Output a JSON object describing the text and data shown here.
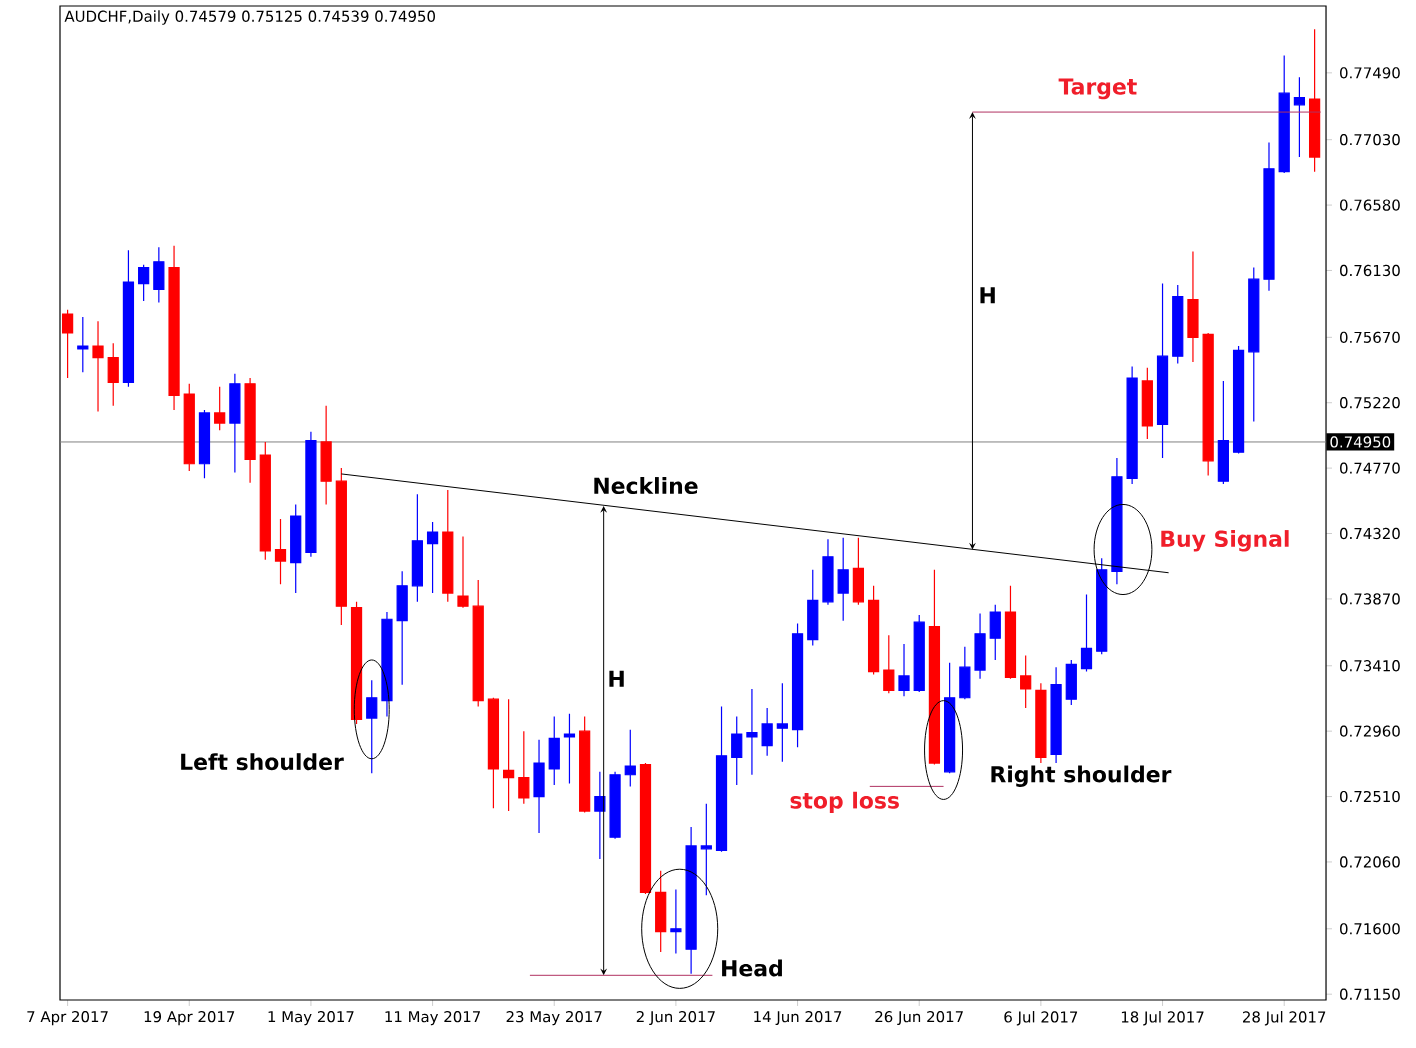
{
  "chart_data": {
    "type": "candlestick",
    "title": "AUDCHF,Daily  0.74579 0.75125 0.74539 0.74950",
    "categories": [
      "7 Apr 2017",
      null,
      null,
      null,
      null,
      null,
      null,
      null,
      "19 Apr 2017",
      null,
      null,
      null,
      null,
      null,
      null,
      null,
      "1 May 2017",
      null,
      null,
      null,
      null,
      null,
      null,
      null,
      "11 May 2017",
      null,
      null,
      null,
      null,
      null,
      null,
      null,
      "23 May 2017",
      null,
      null,
      null,
      null,
      null,
      null,
      null,
      "2 Jun 2017",
      null,
      null,
      null,
      null,
      null,
      null,
      null,
      "14 Jun 2017",
      null,
      null,
      null,
      null,
      null,
      null,
      null,
      "26 Jun 2017",
      null,
      null,
      null,
      null,
      null,
      null,
      null,
      "6 Jul 2017",
      null,
      null,
      null,
      null,
      null,
      null,
      null,
      "18 Jul 2017",
      null,
      null,
      null,
      null,
      null,
      null,
      null,
      "28 Jul 2017",
      null,
      null
    ],
    "ohlc": [
      [
        0.7583,
        0.7586,
        0.7539,
        0.757
      ],
      [
        0.7559,
        0.7581,
        0.7543,
        0.7561
      ],
      [
        0.7561,
        0.7578,
        0.7516,
        0.7553
      ],
      [
        0.7553,
        0.7563,
        0.752,
        0.7536
      ],
      [
        0.7536,
        0.7627,
        0.7533,
        0.7605
      ],
      [
        0.7604,
        0.7617,
        0.7592,
        0.7615
      ],
      [
        0.76,
        0.7629,
        0.7591,
        0.7619
      ],
      [
        0.7615,
        0.763,
        0.7517,
        0.7527
      ],
      [
        0.7528,
        0.7535,
        0.7475,
        0.748
      ],
      [
        0.748,
        0.7517,
        0.747,
        0.7515
      ],
      [
        0.7515,
        0.7533,
        0.7503,
        0.7508
      ],
      [
        0.7508,
        0.7542,
        0.7474,
        0.7535
      ],
      [
        0.7535,
        0.7539,
        0.7467,
        0.7483
      ],
      [
        0.7486,
        0.7495,
        0.7414,
        0.742
      ],
      [
        0.7421,
        0.7442,
        0.7397,
        0.7413
      ],
      [
        0.7412,
        0.7452,
        0.7391,
        0.7444
      ],
      [
        0.7419,
        0.7502,
        0.7416,
        0.7496
      ],
      [
        0.7495,
        0.752,
        0.7452,
        0.7468
      ],
      [
        0.7468,
        0.7477,
        0.7369,
        0.7382
      ],
      [
        0.7381,
        0.7385,
        0.7301,
        0.7304
      ],
      [
        0.7305,
        0.7331,
        0.7267,
        0.7319
      ],
      [
        0.7317,
        0.7378,
        0.7306,
        0.7373
      ],
      [
        0.7372,
        0.7406,
        0.7328,
        0.7396
      ],
      [
        0.7396,
        0.7459,
        0.7385,
        0.7427
      ],
      [
        0.7425,
        0.744,
        0.7391,
        0.7433
      ],
      [
        0.7433,
        0.7462,
        0.7385,
        0.7391
      ],
      [
        0.7389,
        0.743,
        0.7381,
        0.7382
      ],
      [
        0.7382,
        0.74,
        0.7313,
        0.7317
      ],
      [
        0.7318,
        0.7319,
        0.7243,
        0.727
      ],
      [
        0.7269,
        0.7318,
        0.7241,
        0.7264
      ],
      [
        0.7264,
        0.7296,
        0.7246,
        0.725
      ],
      [
        0.7251,
        0.729,
        0.7226,
        0.7274
      ],
      [
        0.727,
        0.7306,
        0.7259,
        0.7291
      ],
      [
        0.7292,
        0.7308,
        0.726,
        0.7294
      ],
      [
        0.7296,
        0.7306,
        0.724,
        0.7241
      ],
      [
        0.7241,
        0.7268,
        0.7208,
        0.7251
      ],
      [
        0.7223,
        0.7268,
        0.7222,
        0.7266
      ],
      [
        0.7266,
        0.7297,
        0.7258,
        0.7272
      ],
      [
        0.7273,
        0.7274,
        0.7184,
        0.7185
      ],
      [
        0.7185,
        0.72,
        0.7144,
        0.7158
      ],
      [
        0.7158,
        0.7187,
        0.7143,
        0.716
      ],
      [
        0.7146,
        0.723,
        0.7129,
        0.7217
      ],
      [
        0.7215,
        0.7246,
        0.7183,
        0.7217
      ],
      [
        0.7214,
        0.7313,
        0.7213,
        0.7279
      ],
      [
        0.7278,
        0.7306,
        0.7259,
        0.7294
      ],
      [
        0.7292,
        0.7325,
        0.7266,
        0.7295
      ],
      [
        0.7286,
        0.7312,
        0.7279,
        0.7301
      ],
      [
        0.7298,
        0.7329,
        0.7275,
        0.7301
      ],
      [
        0.7297,
        0.737,
        0.7285,
        0.7363
      ],
      [
        0.7359,
        0.7407,
        0.7355,
        0.7386
      ],
      [
        0.7385,
        0.7428,
        0.7383,
        0.7416
      ],
      [
        0.7391,
        0.7429,
        0.7372,
        0.7407
      ],
      [
        0.7408,
        0.7429,
        0.7383,
        0.7385
      ],
      [
        0.7386,
        0.7396,
        0.7335,
        0.7337
      ],
      [
        0.7338,
        0.7362,
        0.7322,
        0.7324
      ],
      [
        0.7324,
        0.7356,
        0.732,
        0.7334
      ],
      [
        0.7324,
        0.7376,
        0.7323,
        0.7371
      ],
      [
        0.7368,
        0.7407,
        0.7273,
        0.7274
      ],
      [
        0.7268,
        0.7343,
        0.7267,
        0.7319
      ],
      [
        0.7319,
        0.7354,
        0.7318,
        0.734
      ],
      [
        0.7338,
        0.7377,
        0.7332,
        0.7363
      ],
      [
        0.736,
        0.7383,
        0.7345,
        0.7378
      ],
      [
        0.7378,
        0.7396,
        0.7332,
        0.7333
      ],
      [
        0.7334,
        0.7348,
        0.7312,
        0.7325
      ],
      [
        0.7324,
        0.7329,
        0.7274,
        0.7278
      ],
      [
        0.728,
        0.734,
        0.7274,
        0.7328
      ],
      [
        0.7318,
        0.7345,
        0.7314,
        0.7342
      ],
      [
        0.7339,
        0.739,
        0.7337,
        0.7353
      ],
      [
        0.7351,
        0.7415,
        0.7349,
        0.7407
      ],
      [
        0.7406,
        0.7484,
        0.7397,
        0.7471
      ],
      [
        0.747,
        0.7547,
        0.7466,
        0.7539
      ],
      [
        0.7537,
        0.7546,
        0.7497,
        0.7506
      ],
      [
        0.7507,
        0.7604,
        0.7484,
        0.7554
      ],
      [
        0.7554,
        0.7603,
        0.7549,
        0.7595
      ],
      [
        0.7593,
        0.7626,
        0.755,
        0.7567
      ],
      [
        0.7569,
        0.757,
        0.7472,
        0.7482
      ],
      [
        0.7468,
        0.7537,
        0.7466,
        0.7496
      ],
      [
        0.7488,
        0.7561,
        0.7487,
        0.7558
      ],
      [
        0.7557,
        0.7615,
        0.7509,
        0.7607
      ],
      [
        0.7607,
        0.7701,
        0.7599,
        0.7683
      ],
      [
        0.7681,
        0.7761,
        0.768,
        0.7735
      ],
      [
        0.7727,
        0.7746,
        0.7691,
        0.7732
      ],
      [
        0.7731,
        0.7779,
        0.7681,
        0.7691
      ]
    ],
    "colors": [
      "#ff0000",
      "#0000ff",
      "#ff0000",
      "#ff0000",
      "#0000ff",
      "#0000ff",
      "#0000ff",
      "#ff0000",
      "#ff0000",
      "#0000ff",
      "#ff0000",
      "#0000ff",
      "#ff0000",
      "#ff0000",
      "#ff0000",
      "#0000ff",
      "#0000ff",
      "#ff0000",
      "#ff0000",
      "#ff0000",
      "#0000ff",
      "#0000ff",
      "#0000ff",
      "#0000ff",
      "#0000ff",
      "#ff0000",
      "#ff0000",
      "#ff0000",
      "#ff0000",
      "#ff0000",
      "#ff0000",
      "#0000ff",
      "#0000ff",
      "#0000ff",
      "#ff0000",
      "#0000ff",
      "#0000ff",
      "#0000ff",
      "#ff0000",
      "#ff0000",
      "#0000ff",
      "#0000ff",
      "#0000ff",
      "#0000ff",
      "#0000ff",
      "#0000ff",
      "#0000ff",
      "#0000ff",
      "#0000ff",
      "#0000ff",
      "#0000ff",
      "#0000ff",
      "#ff0000",
      "#ff0000",
      "#ff0000",
      "#0000ff",
      "#0000ff",
      "#ff0000",
      "#0000ff",
      "#0000ff",
      "#0000ff",
      "#0000ff",
      "#ff0000",
      "#ff0000",
      "#ff0000",
      "#0000ff",
      "#0000ff",
      "#0000ff",
      "#0000ff",
      "#0000ff",
      "#0000ff",
      "#ff0000",
      "#0000ff",
      "#0000ff",
      "#ff0000",
      "#ff0000",
      "#0000ff",
      "#0000ff",
      "#0000ff",
      "#0000ff",
      "#0000ff",
      "#0000ff",
      "#ff0000"
    ],
    "ref_lines": [
      {
        "axis": "y",
        "value": 0.7495,
        "label": "0.74950",
        "color": "#808080"
      }
    ],
    "annotations": [
      "Neckline",
      "H",
      "H",
      "Left shoulder",
      "Head",
      "Right shoulder",
      "stop loss",
      "Buy Signal",
      "Target"
    ],
    "ylim": [
      0.7111,
      0.7795
    ],
    "yticks": [
      {
        "value": 0.7115,
        "label": "0.71150"
      },
      {
        "value": 0.716,
        "label": "0.71600"
      },
      {
        "value": 0.7206,
        "label": "0.72060"
      },
      {
        "value": 0.7251,
        "label": "0.72510"
      },
      {
        "value": 0.7296,
        "label": "0.72960"
      },
      {
        "value": 0.7341,
        "label": "0.73410"
      },
      {
        "value": 0.7387,
        "label": "0.73870"
      },
      {
        "value": 0.7432,
        "label": "0.74320"
      },
      {
        "value": 0.7477,
        "label": "0.74770"
      },
      {
        "value": 0.7522,
        "label": "0.75220"
      },
      {
        "value": 0.7567,
        "label": "0.75670"
      },
      {
        "value": 0.7613,
        "label": "0.76130"
      },
      {
        "value": 0.7658,
        "label": "0.76580"
      },
      {
        "value": 0.7703,
        "label": "0.77030"
      },
      {
        "value": 0.7749,
        "label": "0.77490"
      }
    ]
  }
}
